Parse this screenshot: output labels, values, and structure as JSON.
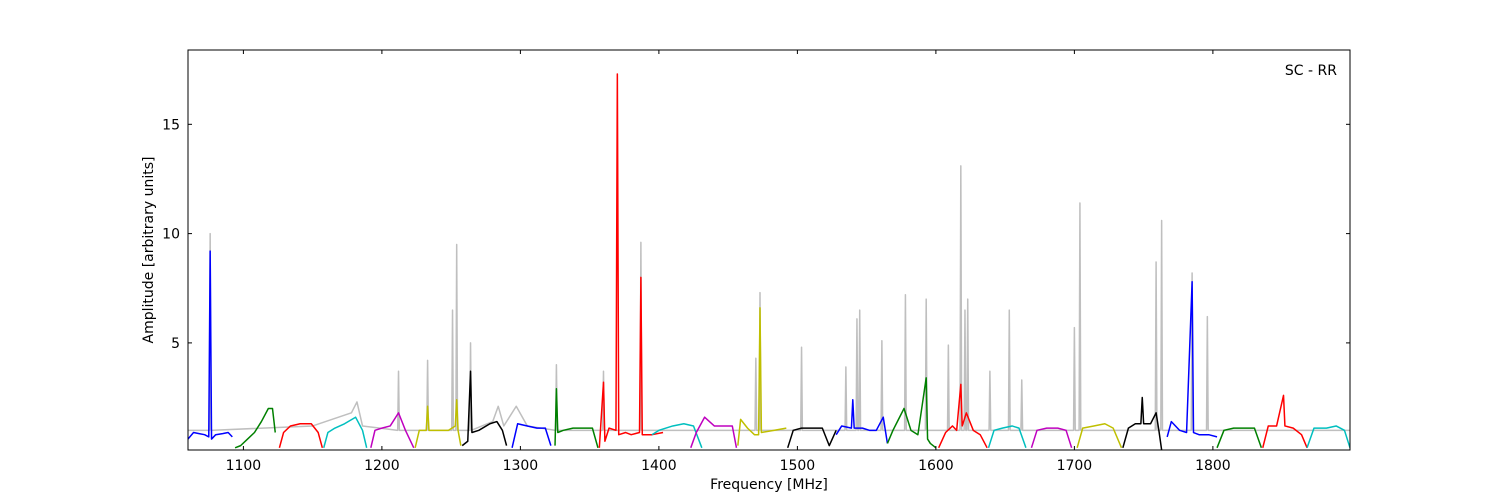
{
  "chart_data": {
    "type": "line",
    "annotation": "SC - RR",
    "xlabel": "Frequency [MHz]",
    "ylabel": "Amplitude [arbitrary units]",
    "xlim": [
      1060,
      1899
    ],
    "xticks": [
      1100,
      1200,
      1300,
      1400,
      1500,
      1600,
      1700,
      1800
    ],
    "ylim": [
      0.1,
      18.4
    ],
    "yticks": [
      5,
      10,
      15
    ],
    "series": [
      {
        "color": "#bfbfbf",
        "x": [
          1060,
          1075.4,
          1076,
          1076.6,
          1150,
          1178,
          1182,
          1186,
          1211.4,
          1212,
          1212.6,
          1232.4,
          1233,
          1233.6,
          1250.4,
          1251,
          1251.6,
          1253.4,
          1254,
          1254.6,
          1263.4,
          1264,
          1264.6,
          1280,
          1284,
          1288,
          1297,
          1305,
          1325.4,
          1326,
          1326.6,
          1359.4,
          1360,
          1360.6,
          1386.4,
          1387,
          1387.6,
          1469.4,
          1470,
          1470.6,
          1472.4,
          1473,
          1473.6,
          1502.4,
          1503,
          1503.6,
          1534.4,
          1535,
          1535.6,
          1542.4,
          1543,
          1543.6,
          1544.4,
          1545,
          1545.6,
          1560.4,
          1561,
          1561.6,
          1577.4,
          1578,
          1578.6,
          1592.4,
          1593,
          1593.6,
          1608.4,
          1609,
          1609.6,
          1617.4,
          1618,
          1618.6,
          1620.4,
          1621,
          1621.6,
          1622.4,
          1623,
          1623.6,
          1638.4,
          1639,
          1639.6,
          1652.4,
          1653,
          1653.6,
          1661.4,
          1662,
          1662.6,
          1699.4,
          1700,
          1700.6,
          1703.4,
          1704,
          1704.6,
          1758.4,
          1759,
          1759.6,
          1762.4,
          1763,
          1763.6,
          1784.4,
          1785,
          1785.6,
          1795.4,
          1796,
          1796.6,
          1899
        ],
        "values": [
          1,
          1,
          10.0,
          1,
          1.2,
          1.8,
          2.3,
          1.2,
          1,
          3.7,
          1,
          1,
          4.2,
          1,
          1,
          6.5,
          1,
          1,
          9.5,
          1,
          1,
          5.0,
          1,
          1.4,
          2.1,
          1.2,
          2.1,
          1.2,
          1,
          4.0,
          1,
          1,
          3.7,
          1,
          1,
          9.6,
          1,
          1,
          4.3,
          1,
          1,
          7.3,
          1,
          1,
          4.8,
          1,
          1,
          3.9,
          1,
          1,
          6.1,
          1,
          1,
          6.5,
          1,
          1,
          5.1,
          1,
          1,
          7.2,
          1,
          1,
          7.0,
          1,
          1,
          4.9,
          1,
          1,
          13.1,
          1,
          1,
          6.5,
          1,
          1,
          7.0,
          1,
          1,
          3.7,
          1,
          1,
          6.5,
          1,
          1,
          3.3,
          1,
          1,
          5.7,
          1,
          1,
          11.4,
          1,
          1,
          8.7,
          1,
          1,
          10.6,
          1,
          1,
          8.2,
          1,
          1,
          6.2,
          1,
          1
        ]
      },
      {
        "color": "#0000ff",
        "x": [
          1060,
          1064,
          1068,
          1072,
          1075,
          1076,
          1077,
          1080,
          1085,
          1089,
          1092
        ],
        "values": [
          0.6,
          0.9,
          0.85,
          0.8,
          0.7,
          9.2,
          0.6,
          0.8,
          0.85,
          0.9,
          0.7
        ]
      },
      {
        "color": "#008000",
        "x": [
          1094,
          1098,
          1103,
          1108,
          1113,
          1118,
          1121,
          1123
        ],
        "values": [
          0.2,
          0.3,
          0.6,
          0.9,
          1.4,
          2.0,
          2.0,
          0.9
        ]
      },
      {
        "color": "#ff0000",
        "x": [
          1126,
          1129,
          1134,
          1141,
          1149,
          1154,
          1157
        ],
        "values": [
          0.2,
          0.9,
          1.2,
          1.3,
          1.3,
          0.9,
          0.2
        ]
      },
      {
        "color": "#00bfbf",
        "x": [
          1158,
          1161,
          1166,
          1173,
          1181,
          1186,
          1189
        ],
        "values": [
          0.2,
          0.9,
          1.1,
          1.3,
          1.6,
          1.0,
          0.2
        ]
      },
      {
        "color": "#bf00bf",
        "x": [
          1192,
          1195,
          1200,
          1206,
          1212,
          1217,
          1223
        ],
        "values": [
          0.2,
          1.0,
          1.1,
          1.2,
          1.8,
          1.0,
          0.2
        ]
      },
      {
        "color": "#bfbf00",
        "x": [
          1224,
          1227,
          1232,
          1233,
          1234,
          1240,
          1248,
          1253,
          1254,
          1255,
          1257
        ],
        "values": [
          0.2,
          1.0,
          1.0,
          2.1,
          1.0,
          1.0,
          1.0,
          1.2,
          2.4,
          1.0,
          0.3
        ]
      },
      {
        "color": "#000000",
        "x": [
          1258,
          1262,
          1264,
          1265,
          1270,
          1278,
          1283,
          1287,
          1290
        ],
        "values": [
          0.3,
          0.5,
          3.7,
          0.9,
          1.0,
          1.3,
          1.4,
          1.0,
          0.3
        ]
      },
      {
        "color": "#0000ff",
        "x": [
          1294,
          1298,
          1305,
          1312,
          1318,
          1322
        ],
        "values": [
          0.2,
          1.3,
          1.2,
          1.1,
          1.1,
          0.3
        ]
      },
      {
        "color": "#008000",
        "x": [
          1325,
          1326,
          1327,
          1331,
          1338,
          1345,
          1352,
          1356
        ],
        "values": [
          0.3,
          2.9,
          0.9,
          1.0,
          1.1,
          1.1,
          1.1,
          0.2
        ]
      },
      {
        "color": "#ff0000",
        "x": [
          1357,
          1360,
          1361,
          1364,
          1369,
          1370,
          1371,
          1376,
          1380,
          1386,
          1387,
          1388,
          1395,
          1403
        ],
        "values": [
          0.2,
          3.2,
          0.5,
          1.1,
          1.0,
          17.3,
          0.8,
          0.9,
          0.8,
          0.9,
          8.0,
          0.8,
          0.8,
          0.9
        ]
      },
      {
        "color": "#00bfbf",
        "x": [
          1395,
          1400,
          1410,
          1418,
          1425,
          1431
        ],
        "values": [
          0.8,
          1.0,
          1.2,
          1.3,
          1.2,
          0.2
        ]
      },
      {
        "color": "#bf00bf",
        "x": [
          1423,
          1427,
          1433,
          1440,
          1448,
          1453,
          1456
        ],
        "values": [
          0.2,
          0.9,
          1.6,
          1.2,
          1.2,
          1.2,
          0.2
        ]
      },
      {
        "color": "#bfbf00",
        "x": [
          1457,
          1459,
          1464,
          1469,
          1472,
          1473,
          1474,
          1483,
          1492
        ],
        "values": [
          0.3,
          1.5,
          1.1,
          0.8,
          0.8,
          6.6,
          0.9,
          1.0,
          1.1
        ]
      },
      {
        "color": "#000000",
        "x": [
          1493,
          1497,
          1503,
          1512,
          1518,
          1523,
          1528
        ],
        "values": [
          0.2,
          1.0,
          1.1,
          1.1,
          1.1,
          0.3,
          1.0
        ]
      },
      {
        "color": "#0000ff",
        "x": [
          1528,
          1532,
          1539,
          1540,
          1541,
          1547,
          1552,
          1557,
          1562,
          1565
        ],
        "values": [
          0.8,
          1.2,
          1.1,
          2.4,
          1.1,
          1.1,
          1.0,
          1.0,
          1.6,
          0.4
        ]
      },
      {
        "color": "#008000",
        "x": [
          1565,
          1569,
          1573,
          1577,
          1582,
          1587,
          1593,
          1594,
          1596,
          1600
        ],
        "values": [
          0.4,
          1.0,
          1.5,
          2.0,
          1.0,
          0.8,
          3.4,
          0.6,
          0.4,
          0.2
        ]
      },
      {
        "color": "#ff0000",
        "x": [
          1602,
          1607,
          1612,
          1615,
          1618,
          1619,
          1622,
          1627,
          1632,
          1637
        ],
        "values": [
          0.2,
          0.9,
          1.2,
          1.0,
          3.1,
          1.2,
          1.8,
          1.0,
          0.8,
          0.2
        ]
      },
      {
        "color": "#00bfbf",
        "x": [
          1638,
          1642,
          1648,
          1655,
          1660,
          1665
        ],
        "values": [
          0.2,
          1.0,
          1.1,
          1.2,
          1.1,
          0.2
        ]
      },
      {
        "color": "#bf00bf",
        "x": [
          1669,
          1673,
          1680,
          1688,
          1694,
          1698
        ],
        "values": [
          0.2,
          1.0,
          1.1,
          1.1,
          1.0,
          0.2
        ]
      },
      {
        "color": "#bfbf00",
        "x": [
          1702,
          1706,
          1714,
          1722,
          1728,
          1734
        ],
        "values": [
          0.2,
          1.1,
          1.2,
          1.3,
          1.1,
          0.2
        ]
      },
      {
        "color": "#000000",
        "x": [
          1735,
          1739,
          1744,
          1748,
          1749,
          1750,
          1755,
          1759,
          1761,
          1763
        ],
        "values": [
          0.2,
          1.1,
          1.3,
          1.3,
          2.5,
          1.3,
          1.3,
          1.8,
          1.0,
          0.1
        ]
      },
      {
        "color": "#0000ff",
        "x": [
          1767,
          1770,
          1776,
          1781,
          1785,
          1786,
          1790,
          1797,
          1803
        ],
        "values": [
          0.7,
          1.4,
          1.0,
          0.9,
          7.8,
          0.9,
          0.8,
          0.8,
          0.7
        ]
      },
      {
        "color": "#008000",
        "x": [
          1803,
          1808,
          1815,
          1823,
          1830,
          1835
        ],
        "values": [
          0.2,
          1.0,
          1.1,
          1.1,
          1.1,
          0.2
        ]
      },
      {
        "color": "#ff0000",
        "x": [
          1836,
          1840,
          1846,
          1851,
          1852,
          1858,
          1864,
          1868
        ],
        "values": [
          0.2,
          1.2,
          1.2,
          2.6,
          1.2,
          1.1,
          0.8,
          0.2
        ]
      },
      {
        "color": "#00bfbf",
        "x": [
          1868,
          1873,
          1882,
          1889,
          1895,
          1899
        ],
        "values": [
          0.2,
          1.1,
          1.1,
          1.2,
          1.0,
          0.2
        ]
      }
    ]
  }
}
